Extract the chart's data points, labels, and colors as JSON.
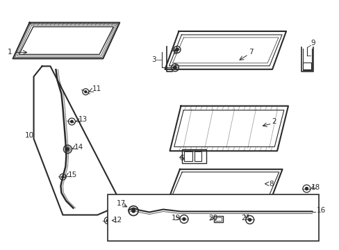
{
  "bg_color": "#ffffff",
  "line_color": "#2a2a2a",
  "label_color": "#1a1a1a",
  "fig_width": 4.89,
  "fig_height": 3.6,
  "dpi": 100
}
